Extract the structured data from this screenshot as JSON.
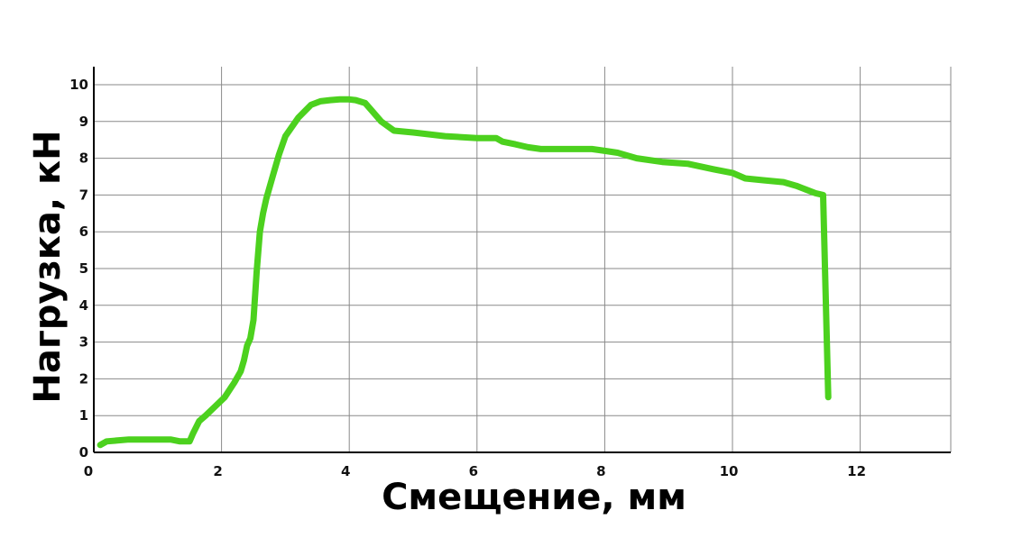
{
  "chart_data": {
    "type": "line",
    "title": "",
    "xlabel": "Смещение, мм",
    "ylabel": "Нагрузка, кН",
    "xlim": [
      0,
      13.4
    ],
    "ylim": [
      0,
      10.6
    ],
    "x_ticks": [
      0,
      2,
      4,
      6,
      8,
      10,
      12
    ],
    "y_ticks": [
      0,
      1,
      2,
      3,
      4,
      5,
      6,
      7,
      8,
      9,
      10
    ],
    "grid": true,
    "line_color": "#4cd11e",
    "series": [
      {
        "x": [
          0.1,
          0.2,
          0.35,
          0.55,
          0.8,
          1.0,
          1.2,
          1.35,
          1.5,
          1.55,
          1.65,
          1.75,
          1.9,
          2.05,
          2.2,
          2.3,
          2.35,
          2.4,
          2.45,
          2.5,
          2.55,
          2.6,
          2.65,
          2.7,
          2.8,
          2.9,
          3.0,
          3.2,
          3.4,
          3.55,
          3.7,
          3.85,
          4.0,
          4.1,
          4.25,
          4.35,
          4.5,
          4.7,
          5.0,
          5.5,
          6.0,
          6.3,
          6.4,
          6.6,
          6.8,
          7.0,
          7.5,
          7.8,
          8.0,
          8.2,
          8.5,
          8.9,
          9.3,
          9.7,
          10.0,
          10.2,
          10.5,
          10.8,
          11.0,
          11.15,
          11.3,
          11.42,
          11.5
        ],
        "y": [
          0.2,
          0.3,
          0.32,
          0.35,
          0.35,
          0.35,
          0.35,
          0.3,
          0.3,
          0.5,
          0.85,
          1.0,
          1.25,
          1.5,
          1.9,
          2.2,
          2.5,
          2.9,
          3.1,
          3.6,
          4.9,
          6.0,
          6.5,
          6.9,
          7.5,
          8.1,
          8.6,
          9.1,
          9.45,
          9.55,
          9.58,
          9.6,
          9.6,
          9.58,
          9.5,
          9.3,
          9.0,
          8.75,
          8.7,
          8.6,
          8.55,
          8.55,
          8.45,
          8.38,
          8.3,
          8.25,
          8.25,
          8.25,
          8.2,
          8.15,
          8.0,
          7.9,
          7.85,
          7.7,
          7.6,
          7.45,
          7.4,
          7.35,
          7.25,
          7.15,
          7.05,
          7.0,
          1.5
        ]
      }
    ]
  }
}
